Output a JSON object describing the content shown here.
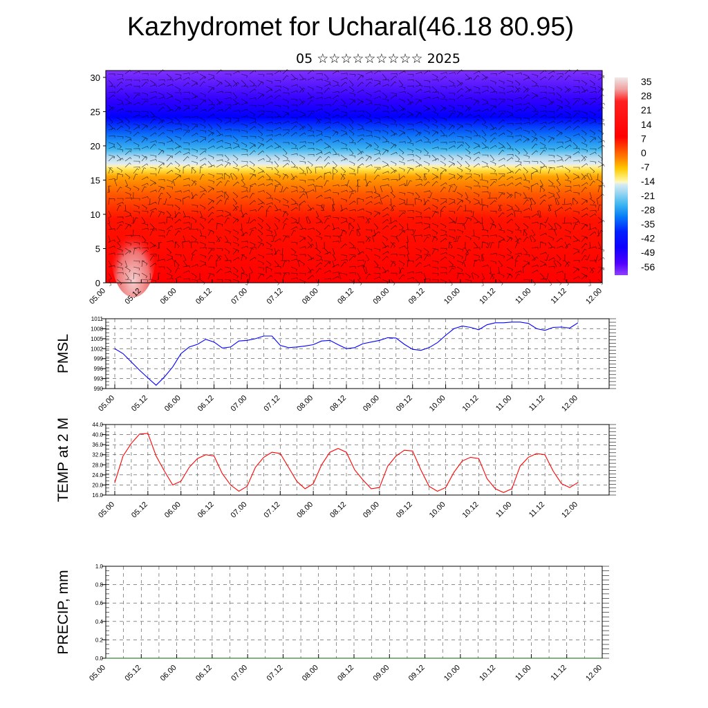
{
  "page": {
    "title": "Kazhydromet for Ucharal(46.18 80.95)",
    "subtitle": "05 ☆☆☆☆☆☆☆☆☆ 2025"
  },
  "time_labels": [
    "05.00",
    "05.12",
    "06.00",
    "06.12",
    "07.00",
    "07.12",
    "08.00",
    "08.12",
    "09.00",
    "09.12",
    "10.00",
    "10.12",
    "11.00",
    "11.12",
    "12.00"
  ],
  "colors": {
    "pmsl_line": "#0000ff",
    "temp_line": "#ff0000",
    "precip_line": "#006400",
    "colorbar": [
      "#e8e8e8",
      "#f09090",
      "#ff0000",
      "#ff5000",
      "#ffa500",
      "#ffd000",
      "#ffff80",
      "#d0e8f0",
      "#60c8f0",
      "#0078ff",
      "#0000ff",
      "#5000ff",
      "#a040ff"
    ]
  },
  "chart_data": [
    {
      "type": "heatmap",
      "title": "",
      "ylabel": "",
      "ylim": [
        0,
        31
      ],
      "yticks": [
        "0",
        "5",
        "10",
        "15",
        "20",
        "25",
        "30"
      ],
      "xlim": [
        0,
        84
      ],
      "colorbar": {
        "labels": [
          "35",
          "28",
          "21",
          "14",
          "7",
          "0",
          "-7",
          "-14",
          "-21",
          "-28",
          "-35",
          "-42",
          "-49",
          "-56"
        ],
        "range": [
          -63,
          42
        ]
      },
      "description_note": "",
      "overlay": "wind barbs"
    },
    {
      "type": "line",
      "ylabel": "PMSL",
      "ylim": [
        990,
        1011
      ],
      "yticks": [
        "1011",
        "1008",
        "1005",
        "1002",
        "999",
        "996",
        "993",
        "990"
      ],
      "series": [
        {
          "name": "",
          "x": [
            0,
            3,
            6,
            9,
            12,
            15,
            18,
            21,
            24,
            27,
            30,
            33,
            36,
            39,
            42,
            45,
            48,
            51,
            54,
            57,
            60,
            63,
            66,
            69,
            72,
            75,
            78,
            81,
            84,
            87,
            90,
            93,
            96,
            99,
            102,
            105,
            108,
            111,
            114,
            117,
            120,
            123,
            126,
            129,
            132,
            135,
            138,
            141,
            144,
            147,
            150,
            153,
            156,
            159,
            162,
            165,
            168
          ],
          "values": [
            1002.0,
            1000.5,
            998.0,
            995.5,
            993.2,
            991.0,
            993.5,
            996.5,
            1000.5,
            1002.5,
            1003.3,
            1004.8,
            1004.0,
            1002.2,
            1002.5,
            1004.3,
            1004.5,
            1005.0,
            1005.8,
            1005.8,
            1003.0,
            1002.3,
            1002.5,
            1002.8,
            1003.2,
            1004.3,
            1004.5,
            1003.2,
            1002.0,
            1002.3,
            1003.5,
            1004.0,
            1004.5,
            1005.3,
            1005.2,
            1003.3,
            1001.8,
            1001.5,
            1002.3,
            1003.8,
            1006.0,
            1008.0,
            1008.8,
            1008.4,
            1007.7,
            1009.2,
            1009.8,
            1009.8,
            1010.0,
            1010.0,
            1009.6,
            1008.0,
            1007.5,
            1008.4,
            1008.5,
            1008.2,
            1009.8
          ]
        }
      ]
    },
    {
      "type": "line",
      "ylabel": "TEMP at 2 M",
      "ylim": [
        16.0,
        44.0
      ],
      "yticks": [
        "44.0",
        "40.0",
        "36.0",
        "32.0",
        "28.0",
        "24.0",
        "20.0",
        "16.0"
      ],
      "series": [
        {
          "name": "",
          "x": [
            0,
            3,
            6,
            9,
            12,
            15,
            18,
            21,
            24,
            27,
            30,
            33,
            36,
            39,
            42,
            45,
            48,
            51,
            54,
            57,
            60,
            63,
            66,
            69,
            72,
            75,
            78,
            81,
            84,
            87,
            90,
            93,
            96,
            99,
            102,
            105,
            108,
            111,
            114,
            117,
            120,
            123,
            126,
            129,
            132,
            135,
            138,
            141,
            144,
            147,
            150,
            153,
            156,
            159,
            162,
            165,
            168
          ],
          "values": [
            21.0,
            31.5,
            36.5,
            40.2,
            40.5,
            31.5,
            25.5,
            20.0,
            21.5,
            27.0,
            30.5,
            32.0,
            31.5,
            24.5,
            20.0,
            17.5,
            19.5,
            27.0,
            31.0,
            33.0,
            32.5,
            27.0,
            21.5,
            18.5,
            20.5,
            28.0,
            33.0,
            34.5,
            33.0,
            26.0,
            22.0,
            18.5,
            19.0,
            27.5,
            31.5,
            33.8,
            33.5,
            26.0,
            19.5,
            17.5,
            19.0,
            25.0,
            29.5,
            31.0,
            30.5,
            22.5,
            18.5,
            17.0,
            18.5,
            27.5,
            31.0,
            32.5,
            32.0,
            25.5,
            20.5,
            19.0,
            21.0
          ]
        }
      ]
    },
    {
      "type": "line",
      "ylabel": "PRECIP, mm",
      "ylim": [
        0.0,
        1.0
      ],
      "yticks": [
        "1.0",
        "0.8",
        "0.6",
        "0.4",
        "0.2",
        "0.0"
      ],
      "series": [
        {
          "name": "",
          "x": [
            0,
            84
          ],
          "values": [
            0.0,
            0.0
          ]
        }
      ]
    }
  ]
}
